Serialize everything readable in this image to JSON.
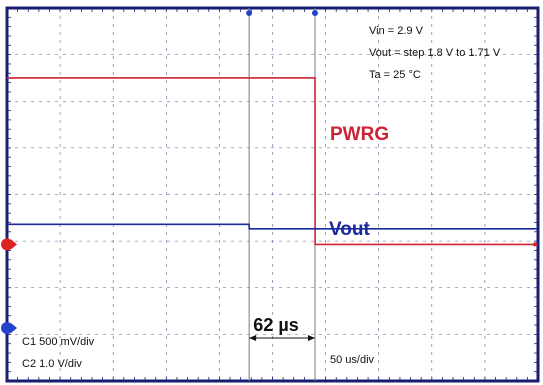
{
  "chart_data": {
    "type": "line",
    "title": "",
    "conditions": [
      "Vin = 2.9 V",
      "Vout = step 1.8 V to 1.71 V",
      "Ta = 25 °C"
    ],
    "grid": true,
    "x_unit": "µs",
    "x_divisions": 10,
    "time_per_div_us": 50,
    "series": [
      {
        "name": "PWRG",
        "color": "#cc2233",
        "x": [
          0,
          290,
          290.1,
          500
        ],
        "y": [
          5,
          5,
          2,
          2
        ],
        "divisions_offset": 3
      },
      {
        "name": "Vout",
        "color": "#1a2a9a",
        "x": [
          0,
          228,
          228.1,
          500
        ],
        "y": [
          1.8,
          1.8,
          1.71,
          1.71
        ],
        "divisions_offset": 0
      }
    ],
    "cursors_us": [
      228,
      290
    ],
    "annotations": {
      "delay": "62 µs",
      "ch1": "C1 500 mV/div",
      "ch2": "C2 1.0 V/div",
      "timebase": "50 us/div"
    },
    "colors": {
      "grid": "#5a5f9a",
      "border": "#1a1e70",
      "cursor": "#7a7a8a",
      "marker_blue": "#2244cc",
      "marker_red": "#dd2222"
    }
  }
}
